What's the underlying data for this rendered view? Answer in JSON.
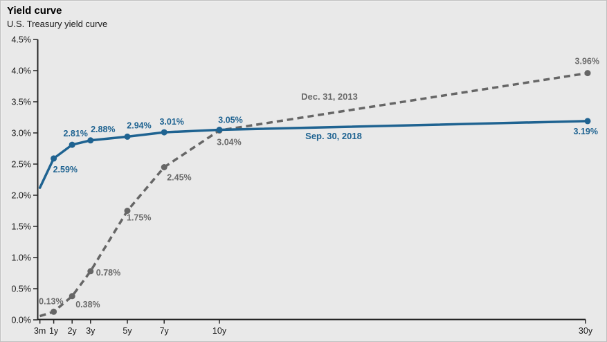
{
  "header": {
    "title": "Yield curve",
    "subtitle": "U.S. Treasury yield curve"
  },
  "colors": {
    "background": "#e9e9e9",
    "border": "#bfbfbf",
    "axis": "#262626",
    "tick_label": "#1a1a1a",
    "series_2018": "#1f6391",
    "series_2013": "#666666",
    "label_2013": "#6b6b6b"
  },
  "chart_data": {
    "type": "line",
    "title": "Yield curve",
    "subtitle": "U.S. Treasury yield curve",
    "x_axis": "maturity",
    "categories": [
      "3m",
      "1y",
      "2y",
      "3y",
      "5y",
      "7y",
      "10y",
      "30y"
    ],
    "x_years": [
      0.25,
      1,
      2,
      3,
      5,
      7,
      10,
      30
    ],
    "ylim": [
      0,
      4.5
    ],
    "ytick_step": 0.5,
    "ytick_labels": [
      "0.0%",
      "0.5%",
      "1.0%",
      "1.5%",
      "2.0%",
      "2.5%",
      "3.0%",
      "3.5%",
      "4.0%",
      "4.5%"
    ],
    "grid": false,
    "legend_position": "inline-annotations",
    "series": [
      {
        "name": "Sep. 30, 2018",
        "color": "#1f6391",
        "line_style": "solid",
        "values": [
          2.12,
          2.59,
          2.81,
          2.88,
          2.94,
          3.01,
          3.05,
          3.19
        ],
        "point_labels": [
          "",
          "2.59%",
          "2.81%",
          "2.88%",
          "2.94%",
          "3.01%",
          "3.05%",
          "3.19%"
        ],
        "markers": [
          false,
          true,
          true,
          true,
          true,
          true,
          true,
          true
        ]
      },
      {
        "name": "Dec. 31, 2013",
        "color": "#666666",
        "label_color": "#6b6b6b",
        "line_style": "dashed",
        "values": [
          0.06,
          0.13,
          0.38,
          0.78,
          1.75,
          2.45,
          3.04,
          3.96
        ],
        "point_labels": [
          "",
          "0.13%",
          "0.38%",
          "0.78%",
          "1.75%",
          "2.45%",
          "3.04%",
          "3.96%"
        ],
        "markers": [
          false,
          true,
          true,
          true,
          true,
          true,
          true,
          true
        ]
      }
    ],
    "annotations": [
      {
        "text": "Dec. 31, 2013",
        "series": "Dec. 31, 2013",
        "color": "#6b6b6b"
      },
      {
        "text": "Sep. 30, 2018",
        "series": "Sep. 30, 2018",
        "color": "#1f6391"
      }
    ]
  }
}
